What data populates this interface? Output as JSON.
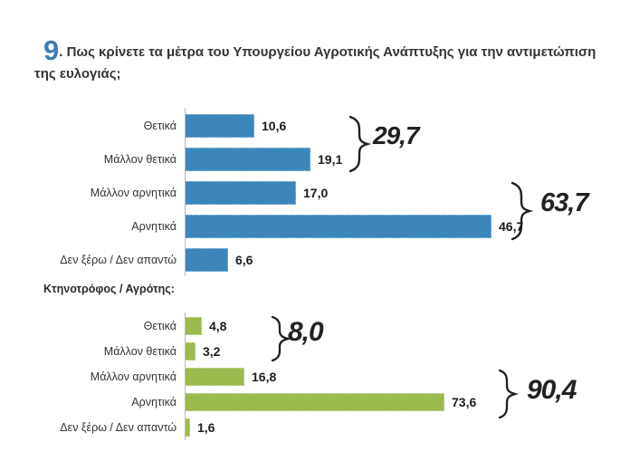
{
  "title": {
    "number": "9",
    "text": ". Πως κρίνετε τα μέτρα του Υπουργείου Αγροτικής Ανάπτυξης για την αντιμετώπιση της ευλογιάς;"
  },
  "subtitle": "Κτηνοτρόφος / Αγρότης:",
  "colors": {
    "bar_blue": "#3C86BC",
    "bar_green": "#9CBB4F",
    "title_number_blue": "#3D7EB5",
    "text_dark": "#343434"
  },
  "chart_data": [
    {
      "type": "bar",
      "orientation": "horizontal",
      "categories": [
        "Θετικά",
        "Μάλλον θετικά",
        "Μάλλον αρνητικά",
        "Αρνητικά",
        "Δεν ξέρω / Δεν απαντώ"
      ],
      "values": [
        10.6,
        19.1,
        17.0,
        46.7,
        6.6
      ],
      "value_labels": [
        "10,6",
        "19,1",
        "17,0",
        "46,7",
        "6,6"
      ],
      "bar_color": "#3C86BC",
      "xlim": [
        0,
        50
      ],
      "grid": false,
      "legend": "none",
      "group_annotations": [
        {
          "label": "29,7",
          "sum_of": [
            "Θετικά",
            "Μάλλον θετικά"
          ],
          "value": 29.7
        },
        {
          "label": "63,7",
          "sum_of": [
            "Μάλλον αρνητικά",
            "Αρνητικά"
          ],
          "value": 63.7
        }
      ]
    },
    {
      "type": "bar",
      "orientation": "horizontal",
      "group_title": "Κτηνοτρόφος / Αγρότης:",
      "categories": [
        "Θετικά",
        "Μάλλον θετικά",
        "Μάλλον αρνητικά",
        "Αρνητικά",
        "Δεν ξέρω / Δεν απαντώ"
      ],
      "values": [
        4.8,
        3.2,
        16.8,
        73.6,
        1.6
      ],
      "value_labels": [
        "4,8",
        "3,2",
        "16,8",
        "73,6",
        "1,6"
      ],
      "bar_color": "#9CBB4F",
      "xlim": [
        0,
        80
      ],
      "grid": false,
      "legend": "none",
      "group_annotations": [
        {
          "label": "8,0",
          "sum_of": [
            "Θετικά",
            "Μάλλον θετικά"
          ],
          "value": 8.0
        },
        {
          "label": "90,4",
          "sum_of": [
            "Μάλλον αρνητικά",
            "Αρνητικά"
          ],
          "value": 90.4
        }
      ]
    }
  ]
}
